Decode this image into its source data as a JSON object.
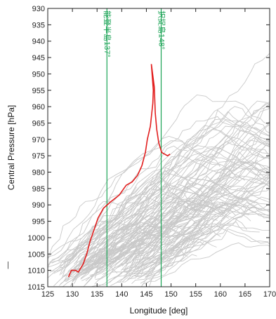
{
  "chart_data": {
    "type": "line",
    "xlabel": "Longitude [deg]",
    "ylabel": "Central Pressure [hPa]",
    "xlim": [
      125,
      170
    ],
    "ylim": [
      930,
      1015
    ],
    "y_inverted": true,
    "x_ticks": [
      125,
      130,
      135,
      140,
      145,
      150,
      155,
      160,
      165,
      170
    ],
    "y_ticks": [
      930,
      935,
      940,
      945,
      950,
      955,
      960,
      965,
      970,
      975,
      980,
      985,
      990,
      995,
      1000,
      1005,
      1010,
      1015
    ],
    "grid": false,
    "reference_lines": [
      {
        "x": 137,
        "label": "能登半島137°",
        "color": "#1aa355"
      },
      {
        "x": 148,
        "label": "択捉島148°",
        "color": "#1aa355"
      }
    ],
    "highlight_series": {
      "color": "#e21e1e",
      "points": [
        [
          129.2,
          1012
        ],
        [
          129.8,
          1010
        ],
        [
          130.6,
          1010
        ],
        [
          131.2,
          1010.5
        ],
        [
          132.2,
          1008
        ],
        [
          132.9,
          1005
        ],
        [
          133.6,
          1001
        ],
        [
          134.3,
          998
        ],
        [
          135.2,
          994
        ],
        [
          136.3,
          991
        ],
        [
          137.8,
          989
        ],
        [
          139.5,
          987
        ],
        [
          140.9,
          984
        ],
        [
          142.1,
          983
        ],
        [
          143.2,
          981
        ],
        [
          144.1,
          978
        ],
        [
          144.8,
          974
        ],
        [
          145.2,
          970
        ],
        [
          145.8,
          966
        ],
        [
          146.3,
          959
        ],
        [
          146.4,
          955
        ],
        [
          146.2,
          951
        ],
        [
          146.0,
          947
        ],
        [
          146.6,
          954
        ],
        [
          146.8,
          962
        ],
        [
          147.1,
          967
        ],
        [
          147.5,
          971
        ],
        [
          148.1,
          974
        ],
        [
          149.3,
          975
        ],
        [
          149.8,
          974.5
        ]
      ]
    },
    "background_series_color": "#c9c9c9",
    "background_series_count": 140
  },
  "edge_mark": "|"
}
